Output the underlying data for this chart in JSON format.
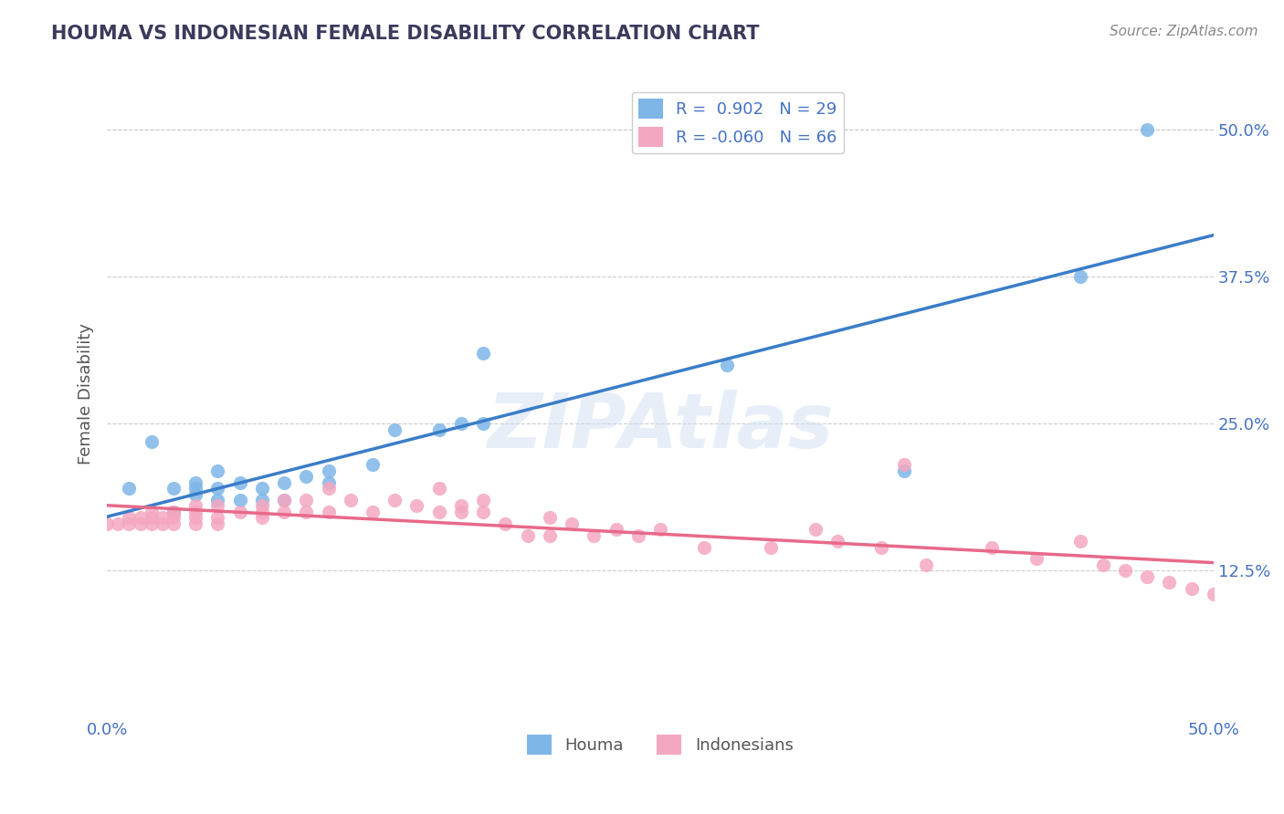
{
  "title": "HOUMA VS INDONESIAN FEMALE DISABILITY CORRELATION CHART",
  "source": "Source: ZipAtlas.com",
  "xlabel_label": "Houma",
  "ylabel_label": "Indonesians",
  "ylabel": "Female Disability",
  "xlim": [
    0,
    0.5
  ],
  "ylim": [
    0,
    0.55
  ],
  "xticks": [
    0.0,
    0.1,
    0.2,
    0.3,
    0.4,
    0.5
  ],
  "xtick_labels": [
    "0.0%",
    "",
    "",
    "",
    "",
    "50.0%"
  ],
  "ytick_right_vals": [
    0.125,
    0.25,
    0.375,
    0.5
  ],
  "ytick_right_labels": [
    "12.5%",
    "25.0%",
    "37.5%",
    "50.0%"
  ],
  "houma_R": 0.902,
  "houma_N": 29,
  "indonesian_R": -0.06,
  "indonesian_N": 66,
  "houma_color": "#7EB6E8",
  "indonesian_color": "#F4A7C0",
  "houma_line_color": "#3A7DC9",
  "indonesian_line_color": "#E8698A",
  "grid_color": "#CCCCCC",
  "title_color": "#3A3A5C",
  "label_color": "#4472C4",
  "watermark_color": "#D0DFF0",
  "houma_x": [
    0.01,
    0.02,
    0.03,
    0.03,
    0.04,
    0.04,
    0.04,
    0.05,
    0.05,
    0.05,
    0.06,
    0.06,
    0.07,
    0.07,
    0.08,
    0.08,
    0.09,
    0.1,
    0.1,
    0.12,
    0.13,
    0.15,
    0.16,
    0.17,
    0.17,
    0.28,
    0.36,
    0.44,
    0.47
  ],
  "houma_y": [
    0.195,
    0.235,
    0.175,
    0.195,
    0.19,
    0.195,
    0.2,
    0.185,
    0.195,
    0.21,
    0.185,
    0.2,
    0.185,
    0.195,
    0.185,
    0.2,
    0.205,
    0.2,
    0.21,
    0.215,
    0.245,
    0.245,
    0.25,
    0.25,
    0.31,
    0.3,
    0.21,
    0.375,
    0.5
  ],
  "indonesian_x": [
    0.0,
    0.005,
    0.01,
    0.01,
    0.015,
    0.015,
    0.02,
    0.02,
    0.02,
    0.025,
    0.025,
    0.03,
    0.03,
    0.03,
    0.04,
    0.04,
    0.04,
    0.04,
    0.05,
    0.05,
    0.05,
    0.06,
    0.07,
    0.07,
    0.07,
    0.08,
    0.08,
    0.09,
    0.09,
    0.1,
    0.1,
    0.11,
    0.12,
    0.13,
    0.14,
    0.15,
    0.15,
    0.16,
    0.16,
    0.17,
    0.17,
    0.18,
    0.19,
    0.2,
    0.2,
    0.21,
    0.22,
    0.23,
    0.24,
    0.25,
    0.27,
    0.3,
    0.32,
    0.33,
    0.35,
    0.36,
    0.37,
    0.4,
    0.42,
    0.44,
    0.45,
    0.46,
    0.47,
    0.48,
    0.49,
    0.5
  ],
  "indonesian_y": [
    0.165,
    0.165,
    0.165,
    0.17,
    0.165,
    0.17,
    0.165,
    0.17,
    0.175,
    0.165,
    0.17,
    0.165,
    0.17,
    0.175,
    0.175,
    0.165,
    0.17,
    0.18,
    0.165,
    0.17,
    0.18,
    0.175,
    0.18,
    0.17,
    0.175,
    0.175,
    0.185,
    0.175,
    0.185,
    0.175,
    0.195,
    0.185,
    0.175,
    0.185,
    0.18,
    0.195,
    0.175,
    0.18,
    0.175,
    0.185,
    0.175,
    0.165,
    0.155,
    0.17,
    0.155,
    0.165,
    0.155,
    0.16,
    0.155,
    0.16,
    0.145,
    0.145,
    0.16,
    0.15,
    0.145,
    0.215,
    0.13,
    0.145,
    0.135,
    0.15,
    0.13,
    0.125,
    0.12,
    0.115,
    0.11,
    0.105
  ]
}
